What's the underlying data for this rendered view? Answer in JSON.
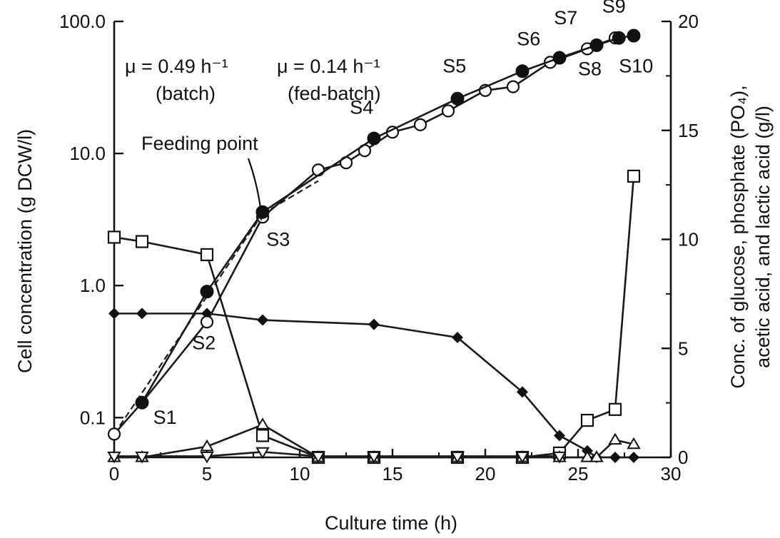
{
  "chart_data": {
    "type": "scatter",
    "xlabel": "Culture time (h)",
    "ylabel_left": "Cell concentration (g DCW/l)",
    "ylabel_right_line1": "Conc. of glucose, phosphate (PO₄),",
    "ylabel_right_line2": "acetic acid, and lactic acid (g/l)",
    "xlim": [
      0,
      30
    ],
    "ylim_left": [
      0.05,
      100
    ],
    "ylim_left_scale": "log",
    "ylim_right": [
      0,
      20
    ],
    "x_ticks": [
      0,
      5,
      10,
      15,
      20,
      25,
      30
    ],
    "y_left_ticks": [
      {
        "value": 0.1,
        "label": "0.1"
      },
      {
        "value": 1,
        "label": "1.0"
      },
      {
        "value": 10,
        "label": "10.0"
      },
      {
        "value": 100,
        "label": "100.0"
      }
    ],
    "y_right_ticks": [
      0,
      5,
      10,
      15,
      20
    ],
    "grid": false,
    "legend": "none",
    "series": [
      {
        "axis": "left",
        "marker": "open-circle",
        "x": [
          0,
          1.5,
          5,
          8,
          11,
          12.5,
          13.5,
          15,
          16.5,
          18,
          20,
          21.5,
          23.5,
          25.5,
          27
        ],
        "y": [
          0.075,
          0.13,
          0.53,
          3.3,
          7.5,
          8.5,
          10.5,
          14.5,
          16.5,
          21,
          30,
          32,
          49,
          62,
          75
        ]
      },
      {
        "axis": "left",
        "marker": "filled-circle",
        "x": [
          1.5,
          5,
          8,
          14,
          18.5,
          22,
          24,
          26,
          27.2,
          28
        ],
        "y": [
          0.13,
          0.9,
          3.6,
          13,
          26,
          42,
          53,
          66,
          75,
          78
        ]
      },
      {
        "axis": "right",
        "marker": "open-square",
        "x": [
          0,
          1.5,
          5,
          8,
          11,
          14,
          18.5,
          22,
          24,
          25.5,
          27,
          28
        ],
        "y": [
          10.1,
          9.9,
          9.3,
          1.0,
          0,
          0,
          0,
          0,
          0.2,
          1.7,
          2.2,
          12.9
        ]
      },
      {
        "axis": "right",
        "marker": "filled-diamond",
        "x": [
          0,
          1.5,
          5,
          8,
          14,
          18.5,
          22,
          24,
          25.5,
          26,
          27,
          28
        ],
        "y": [
          6.6,
          6.6,
          6.6,
          6.3,
          6.1,
          5.5,
          3.0,
          1.0,
          0.3,
          0,
          0,
          0
        ]
      },
      {
        "axis": "right",
        "marker": "open-triangle-up",
        "x": [
          0,
          1.5,
          5,
          8,
          11,
          14,
          18.5,
          22,
          24,
          25.5,
          26,
          27,
          28
        ],
        "y": [
          0,
          0,
          0.5,
          1.5,
          0,
          0,
          0,
          0,
          0,
          0,
          0,
          0.8,
          0.6
        ]
      },
      {
        "axis": "right",
        "marker": "open-triangle-down",
        "x": [
          0,
          1.5,
          5,
          8,
          11,
          14,
          18.5,
          22,
          24
        ],
        "y": [
          0.05,
          0.05,
          0.05,
          0.25,
          0.05,
          0.05,
          0.05,
          0.05,
          0.05
        ]
      }
    ],
    "fit_lines": [
      {
        "x": [
          0,
          8
        ],
        "y": [
          0.075,
          3.5
        ]
      },
      {
        "x": [
          8,
          11
        ],
        "y": [
          3.5,
          6.2
        ]
      }
    ],
    "annotations": {
      "mu_batch": "μ = 0.49 h⁻¹",
      "batch": "(batch)",
      "mu_fed": "μ = 0.14 h⁻¹",
      "fed": "(fed-batch)",
      "feeding_point": "Feeding point",
      "sample_labels": [
        {
          "text": "S1",
          "x": 2.1,
          "y": 0.09
        },
        {
          "text": "S2",
          "x": 4.2,
          "y": 0.33
        },
        {
          "text": "S3",
          "x": 8.2,
          "y": 2.0
        },
        {
          "text": "S4",
          "x": 12.7,
          "y": 20
        },
        {
          "text": "S5",
          "x": 17.7,
          "y": 41
        },
        {
          "text": "S6",
          "x": 21.7,
          "y": 66
        },
        {
          "text": "S7",
          "x": 23.7,
          "y": 95
        },
        {
          "text": "S8",
          "x": 25.0,
          "y": 39
        },
        {
          "text": "S9",
          "x": 26.3,
          "y": 117
        },
        {
          "text": "S10",
          "x": 27.2,
          "y": 41
        }
      ]
    }
  }
}
